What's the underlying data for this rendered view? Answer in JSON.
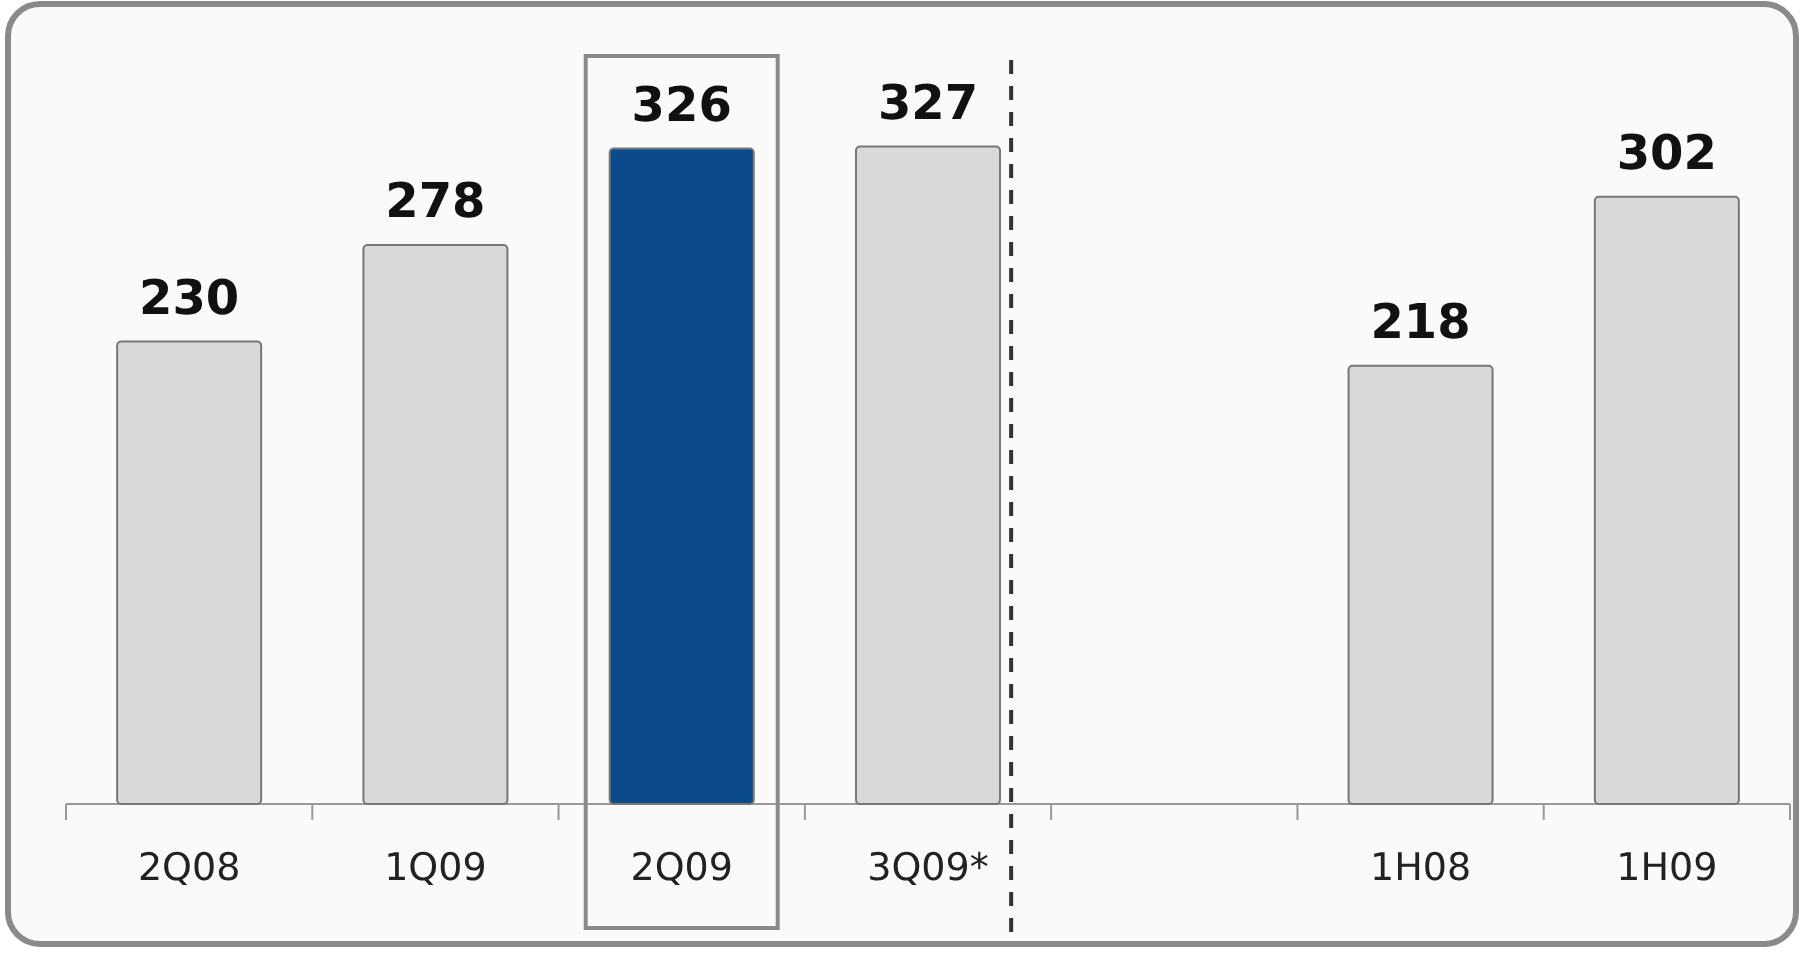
{
  "chart_data": {
    "type": "bar",
    "categories": [
      "2Q08",
      "1Q09",
      "2Q09",
      "3Q09*",
      null,
      "1H08",
      "1H09"
    ],
    "values": [
      230,
      278,
      326,
      327,
      null,
      218,
      302
    ],
    "colors": [
      "#d9d9d9",
      "#d9d9d9",
      "#0b4a8b",
      "#d9d9d9",
      null,
      "#d9d9d9",
      "#d9d9d9"
    ],
    "data_labels": true
  }
}
